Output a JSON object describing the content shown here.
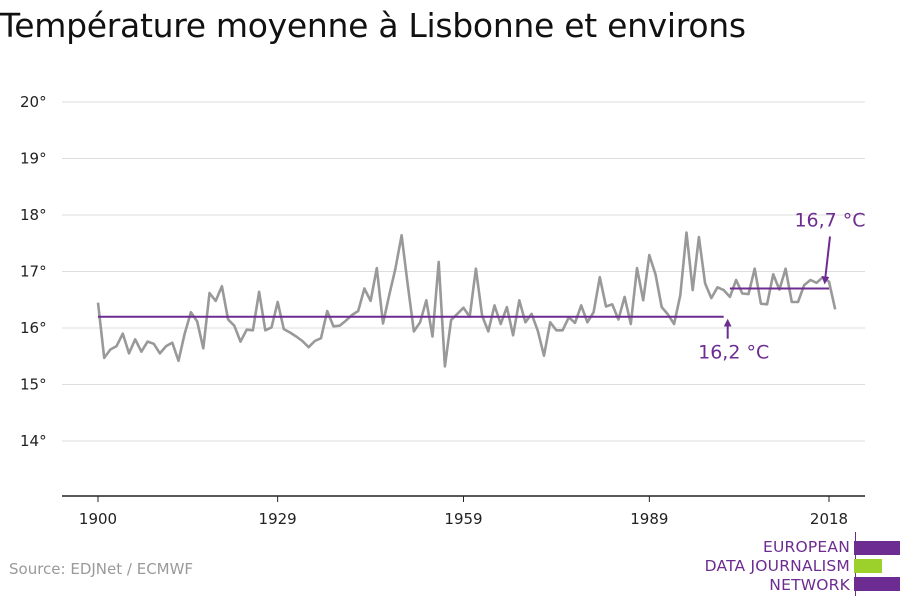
{
  "header": {
    "title": "Température moyenne à Lisbonne et environs"
  },
  "footer": {
    "source": "Source: EDJNet / ECMWF"
  },
  "logo": {
    "lines": [
      "EUROPEAN",
      "DATA JOURNALISM",
      "NETWORK"
    ],
    "colors": {
      "purple": "#6d2c91",
      "green": "#9bd12a"
    }
  },
  "chart_data": {
    "type": "line",
    "title": "Température moyenne à Lisbonne et environs",
    "x_ticks": [
      1900,
      1929,
      1959,
      1989,
      2018
    ],
    "x_tick_labels": [
      "1900",
      "1929",
      "1959",
      "1989",
      "2018"
    ],
    "y_ticks": [
      14,
      15,
      16,
      17,
      18,
      19,
      20
    ],
    "y_tick_labels": [
      "14°",
      "15°",
      "16°",
      "17°",
      "18°",
      "19°",
      "20°"
    ],
    "xlim": [
      1894,
      2024
    ],
    "ylim": [
      13,
      20.4
    ],
    "grid": true,
    "colors": {
      "series": "#999999",
      "average": "#6d2c91"
    },
    "series": [
      {
        "x": [
          1900,
          1901,
          1902,
          1903,
          1904,
          1905,
          1906,
          1907,
          1908,
          1909,
          1910,
          1911,
          1912,
          1913,
          1914,
          1915,
          1916,
          1917,
          1918,
          1919,
          1920,
          1921,
          1922,
          1923,
          1924,
          1925,
          1926,
          1927,
          1928,
          1929,
          1930,
          1931,
          1932,
          1933,
          1934,
          1935,
          1936,
          1937,
          1938,
          1939,
          1940,
          1941,
          1942,
          1943,
          1944,
          1945,
          1946,
          1947,
          1948,
          1949,
          1950,
          1951,
          1952,
          1953,
          1954,
          1955,
          1956,
          1957,
          1958,
          1959,
          1960,
          1961,
          1962,
          1963,
          1964,
          1965,
          1966,
          1967,
          1968,
          1969,
          1970,
          1971,
          1972,
          1973,
          1974,
          1975,
          1976,
          1977,
          1978,
          1979,
          1980,
          1981,
          1982,
          1983,
          1984,
          1985,
          1986,
          1987,
          1988,
          1989,
          1990,
          1991,
          1992,
          1993,
          1994,
          1995,
          1996,
          1997,
          1998,
          1999,
          2000,
          2001,
          2002,
          2003,
          2004,
          2005,
          2006,
          2007,
          2008,
          2009,
          2010,
          2011,
          2012,
          2013,
          2014,
          2015,
          2016,
          2017,
          2018,
          2019
        ],
        "values": [
          16.45,
          15.47,
          15.62,
          15.68,
          15.9,
          15.55,
          15.8,
          15.58,
          15.76,
          15.72,
          15.55,
          15.68,
          15.74,
          15.42,
          15.9,
          16.28,
          16.12,
          15.64,
          16.62,
          16.48,
          16.74,
          16.15,
          16.04,
          15.76,
          15.97,
          15.96,
          16.64,
          15.96,
          16.01,
          16.46,
          15.98,
          15.92,
          15.85,
          15.77,
          15.66,
          15.77,
          15.82,
          16.3,
          16.03,
          16.04,
          16.13,
          16.23,
          16.3,
          16.7,
          16.48,
          17.06,
          16.08,
          16.58,
          17.05,
          17.64,
          16.77,
          15.94,
          16.1,
          16.49,
          15.85,
          17.17,
          15.32,
          16.14,
          16.25,
          16.36,
          16.2,
          17.05,
          16.22,
          15.94,
          16.4,
          16.07,
          16.37,
          15.87,
          16.49,
          16.1,
          16.25,
          15.95,
          15.51,
          16.1,
          15.96,
          15.96,
          16.19,
          16.09,
          16.4,
          16.1,
          16.28,
          16.9,
          16.38,
          16.42,
          16.15,
          16.55,
          16.07,
          17.06,
          16.49,
          17.29,
          16.95,
          16.37,
          16.24,
          16.07,
          16.58,
          17.69,
          16.67,
          17.61,
          16.79,
          16.53,
          16.72,
          16.67,
          16.55,
          16.85,
          16.61,
          16.6,
          17.05,
          16.43,
          16.42,
          16.95,
          16.68,
          17.05,
          16.46,
          16.46,
          16.76,
          16.85,
          16.8,
          16.9,
          16.82,
          16.33
        ]
      },
      {
        "x": [
          1900,
          2001
        ],
        "values": [
          16.2,
          16.2
        ]
      },
      {
        "x": [
          2002,
          2018
        ],
        "values": [
          16.7,
          16.7
        ]
      }
    ],
    "annotations": [
      {
        "text": "16,2 °C",
        "x": 2001,
        "y": 16.2
      },
      {
        "text": "16,7 °C",
        "x": 2018,
        "y": 16.7
      }
    ]
  }
}
